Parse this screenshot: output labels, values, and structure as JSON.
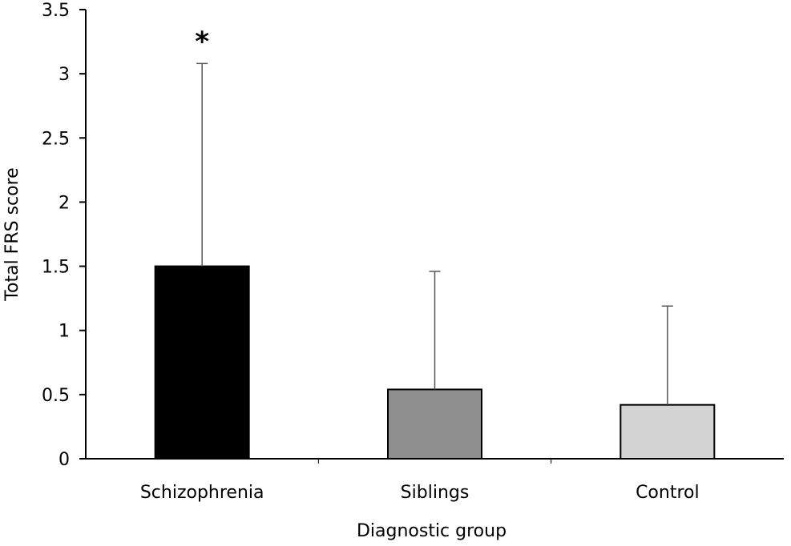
{
  "chart_data": {
    "type": "bar",
    "title": "",
    "xlabel": "Diagnostic group",
    "ylabel": "Total FRS score",
    "categories": [
      "Schizophrenia",
      "Siblings",
      "Control"
    ],
    "values": [
      1.5,
      0.54,
      0.42
    ],
    "error_upper": [
      3.08,
      1.46,
      1.19
    ],
    "bar_colors": [
      "#000000",
      "#8f8f8f",
      "#d3d3d3"
    ],
    "ylim": [
      0,
      3.5
    ],
    "yticks": [
      "0",
      "0.5",
      "1",
      "1.5",
      "2",
      "2.5",
      "3",
      "3.5"
    ],
    "grid": false,
    "legend": "none",
    "annotations": [
      {
        "category": "Schizophrenia",
        "text": "*"
      }
    ]
  }
}
